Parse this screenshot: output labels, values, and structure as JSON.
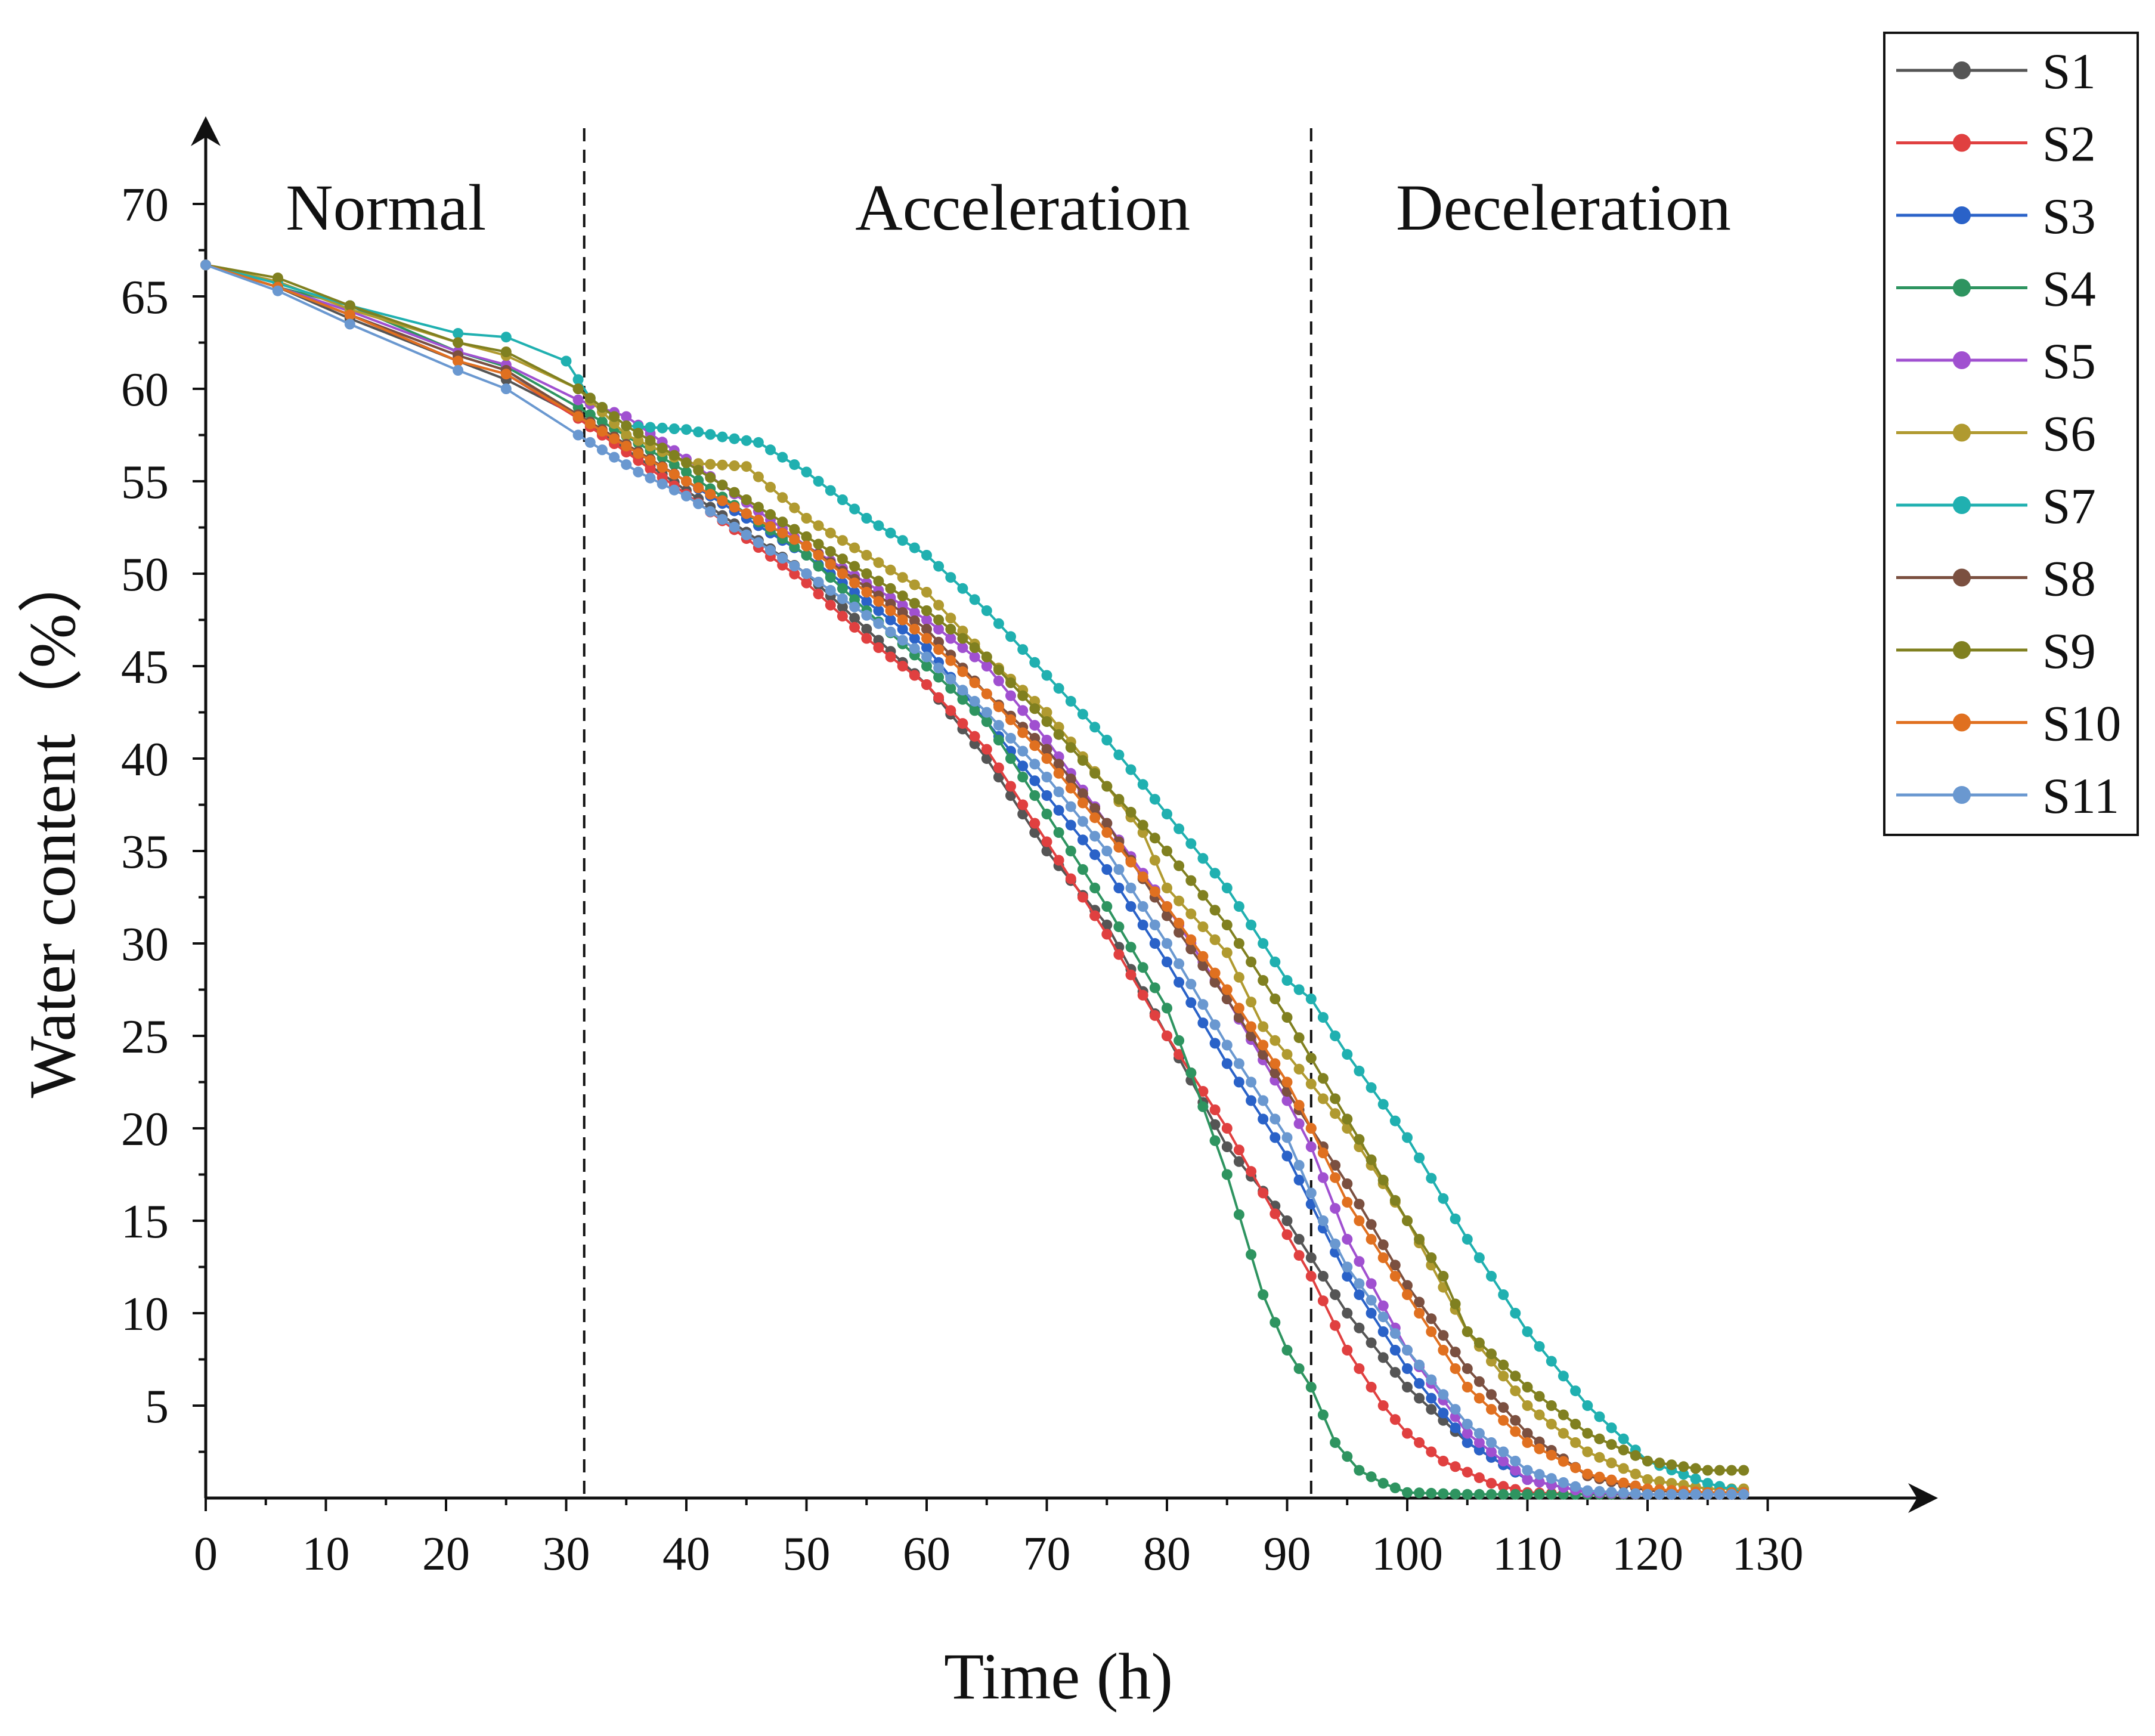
{
  "chart_data": {
    "type": "line",
    "title": "",
    "xlabel": "Time (h)",
    "ylabel": "Water content（%）",
    "xlim": [
      0,
      138
    ],
    "ylim": [
      0,
      70
    ],
    "xticks": [
      0,
      10,
      20,
      30,
      40,
      50,
      60,
      70,
      80,
      90,
      100,
      110,
      120,
      130
    ],
    "yticks": [
      5,
      10,
      15,
      20,
      25,
      30,
      35,
      40,
      45,
      50,
      55,
      60,
      65,
      70
    ],
    "legend_position": "top-right",
    "stage_boundaries": [
      31.5,
      92
    ],
    "stages": [
      {
        "label": "Normal",
        "x": 15
      },
      {
        "label": "Acceleration",
        "x": 68
      },
      {
        "label": "Deceleration",
        "x": 113
      }
    ],
    "series": [
      {
        "name": "S1",
        "color": "#555555",
        "points": [
          [
            0,
            66.7
          ],
          [
            6,
            65.5
          ],
          [
            12,
            63.8
          ],
          [
            21,
            61.5
          ],
          [
            25,
            60.5
          ],
          [
            31,
            58.5
          ],
          [
            40,
            54.5
          ],
          [
            50,
            50
          ],
          [
            60,
            44
          ],
          [
            65,
            40
          ],
          [
            70,
            35
          ],
          [
            75,
            31
          ],
          [
            80,
            25
          ],
          [
            85,
            19
          ],
          [
            90,
            15
          ],
          [
            95,
            10
          ],
          [
            100,
            6
          ],
          [
            105,
            3
          ],
          [
            110,
            1
          ],
          [
            115,
            0.3
          ],
          [
            120,
            0.2
          ],
          [
            128,
            0.2
          ]
        ]
      },
      {
        "name": "S2",
        "color": "#e04040",
        "points": [
          [
            0,
            66.7
          ],
          [
            6,
            65.5
          ],
          [
            12,
            64
          ],
          [
            21,
            61.5
          ],
          [
            25,
            60.8
          ],
          [
            31,
            58.4
          ],
          [
            40,
            54.3
          ],
          [
            50,
            49.5
          ],
          [
            55,
            46.5
          ],
          [
            60,
            44
          ],
          [
            65,
            40.5
          ],
          [
            70,
            35.5
          ],
          [
            75,
            30.5
          ],
          [
            80,
            25
          ],
          [
            82,
            23
          ],
          [
            85,
            20
          ],
          [
            88,
            16.5
          ],
          [
            92,
            12
          ],
          [
            95,
            8
          ],
          [
            98,
            5
          ],
          [
            100,
            3.5
          ],
          [
            103,
            2
          ],
          [
            107,
            0.8
          ],
          [
            110,
            0.3
          ],
          [
            115,
            0.2
          ],
          [
            128,
            0.2
          ]
        ]
      },
      {
        "name": "S3",
        "color": "#2a62c8",
        "points": [
          [
            0,
            66.7
          ],
          [
            6,
            65.5
          ],
          [
            12,
            64
          ],
          [
            21,
            61.8
          ],
          [
            25,
            61
          ],
          [
            31,
            58.5
          ],
          [
            40,
            55
          ],
          [
            50,
            51
          ],
          [
            60,
            46
          ],
          [
            65,
            42
          ],
          [
            70,
            38
          ],
          [
            75,
            34
          ],
          [
            80,
            29
          ],
          [
            85,
            23.5
          ],
          [
            90,
            18.5
          ],
          [
            95,
            12
          ],
          [
            100,
            7
          ],
          [
            105,
            3
          ],
          [
            110,
            1
          ],
          [
            115,
            0.3
          ],
          [
            120,
            0.2
          ],
          [
            128,
            0.2
          ]
        ]
      },
      {
        "name": "S4",
        "color": "#2e9460",
        "points": [
          [
            0,
            66.7
          ],
          [
            6,
            65.5
          ],
          [
            12,
            64.5
          ],
          [
            21,
            62
          ],
          [
            25,
            61.2
          ],
          [
            31,
            59
          ],
          [
            40,
            55.5
          ],
          [
            50,
            51
          ],
          [
            60,
            45
          ],
          [
            65,
            42
          ],
          [
            70,
            37
          ],
          [
            75,
            32
          ],
          [
            80,
            26.5
          ],
          [
            82,
            23
          ],
          [
            85,
            17.5
          ],
          [
            88,
            11
          ],
          [
            90,
            8
          ],
          [
            92,
            6
          ],
          [
            94,
            3
          ],
          [
            96,
            1.5
          ],
          [
            98,
            0.8
          ],
          [
            100,
            0.3
          ],
          [
            105,
            0.2
          ],
          [
            128,
            0.2
          ]
        ]
      },
      {
        "name": "S5",
        "color": "#a050d0",
        "points": [
          [
            0,
            66.7
          ],
          [
            6,
            65.5
          ],
          [
            12,
            64.2
          ],
          [
            21,
            62
          ],
          [
            25,
            61.3
          ],
          [
            31,
            59.4
          ],
          [
            35,
            58.5
          ],
          [
            40,
            56.2
          ],
          [
            50,
            51.5
          ],
          [
            60,
            47.5
          ],
          [
            65,
            45
          ],
          [
            70,
            41
          ],
          [
            75,
            36.5
          ],
          [
            80,
            32
          ],
          [
            85,
            27
          ],
          [
            90,
            21.5
          ],
          [
            92,
            19
          ],
          [
            95,
            14
          ],
          [
            100,
            8
          ],
          [
            105,
            3.5
          ],
          [
            110,
            1
          ],
          [
            115,
            0.3
          ],
          [
            120,
            0.2
          ],
          [
            128,
            0.2
          ]
        ]
      },
      {
        "name": "S6",
        "color": "#b09a30",
        "points": [
          [
            0,
            66.7
          ],
          [
            6,
            65.8
          ],
          [
            12,
            64.3
          ],
          [
            21,
            62.5
          ],
          [
            25,
            61.8
          ],
          [
            31,
            60
          ],
          [
            35,
            57.5
          ],
          [
            40,
            56
          ],
          [
            45,
            55.8
          ],
          [
            50,
            53
          ],
          [
            60,
            49
          ],
          [
            65,
            45.5
          ],
          [
            70,
            42.5
          ],
          [
            75,
            38.5
          ],
          [
            78,
            36
          ],
          [
            80,
            33
          ],
          [
            85,
            29.5
          ],
          [
            88,
            25.5
          ],
          [
            90,
            24
          ],
          [
            95,
            20
          ],
          [
            100,
            15
          ],
          [
            105,
            9
          ],
          [
            110,
            5
          ],
          [
            115,
            2.5
          ],
          [
            120,
            1
          ],
          [
            125,
            0.5
          ],
          [
            128,
            0.5
          ]
        ]
      },
      {
        "name": "S7",
        "color": "#20b0b0",
        "points": [
          [
            0,
            66.7
          ],
          [
            6,
            65.7
          ],
          [
            12,
            64.5
          ],
          [
            21,
            63
          ],
          [
            25,
            62.8
          ],
          [
            30,
            61.5
          ],
          [
            32,
            59.5
          ],
          [
            35,
            58
          ],
          [
            40,
            57.8
          ],
          [
            43,
            57.4
          ],
          [
            46,
            57.1
          ],
          [
            50,
            55.5
          ],
          [
            55,
            53
          ],
          [
            60,
            51
          ],
          [
            65,
            48
          ],
          [
            70,
            44.5
          ],
          [
            75,
            41
          ],
          [
            80,
            37
          ],
          [
            85,
            33
          ],
          [
            90,
            28
          ],
          [
            92,
            27
          ],
          [
            95,
            24
          ],
          [
            100,
            19.5
          ],
          [
            105,
            14
          ],
          [
            110,
            9
          ],
          [
            115,
            5
          ],
          [
            120,
            2
          ],
          [
            125,
            0.8
          ],
          [
            128,
            0.3
          ]
        ]
      },
      {
        "name": "S8",
        "color": "#7b5040",
        "points": [
          [
            0,
            66.7
          ],
          [
            6,
            65.5
          ],
          [
            12,
            64
          ],
          [
            21,
            61.8
          ],
          [
            25,
            61
          ],
          [
            31,
            58.6
          ],
          [
            40,
            55
          ],
          [
            50,
            51.5
          ],
          [
            60,
            47
          ],
          [
            65,
            43.5
          ],
          [
            70,
            40.5
          ],
          [
            75,
            36.5
          ],
          [
            80,
            31.5
          ],
          [
            85,
            27
          ],
          [
            90,
            22
          ],
          [
            95,
            17
          ],
          [
            100,
            11.5
          ],
          [
            105,
            7
          ],
          [
            110,
            3.5
          ],
          [
            115,
            1.2
          ],
          [
            120,
            0.4
          ],
          [
            125,
            0.3
          ],
          [
            128,
            0.3
          ]
        ]
      },
      {
        "name": "S9",
        "color": "#808020",
        "points": [
          [
            0,
            66.7
          ],
          [
            6,
            66
          ],
          [
            12,
            64.5
          ],
          [
            21,
            62.5
          ],
          [
            25,
            62
          ],
          [
            31,
            60
          ],
          [
            35,
            58
          ],
          [
            40,
            56
          ],
          [
            50,
            52
          ],
          [
            60,
            48
          ],
          [
            65,
            45.5
          ],
          [
            70,
            42
          ],
          [
            75,
            38.5
          ],
          [
            80,
            35
          ],
          [
            85,
            31
          ],
          [
            90,
            26
          ],
          [
            95,
            20.5
          ],
          [
            100,
            15
          ],
          [
            103,
            12
          ],
          [
            105,
            9
          ],
          [
            110,
            6
          ],
          [
            115,
            3.5
          ],
          [
            120,
            2
          ],
          [
            125,
            1.5
          ],
          [
            128,
            1.5
          ]
        ]
      },
      {
        "name": "S10",
        "color": "#e07020",
        "points": [
          [
            0,
            66.7
          ],
          [
            6,
            65.5
          ],
          [
            12,
            64
          ],
          [
            21,
            61.5
          ],
          [
            25,
            60.8
          ],
          [
            31,
            58.5
          ],
          [
            36,
            56.5
          ],
          [
            40,
            55
          ],
          [
            50,
            51.5
          ],
          [
            60,
            46.5
          ],
          [
            65,
            43.5
          ],
          [
            70,
            40
          ],
          [
            75,
            36
          ],
          [
            80,
            32
          ],
          [
            85,
            27.5
          ],
          [
            90,
            22.5
          ],
          [
            92,
            20
          ],
          [
            95,
            16
          ],
          [
            100,
            11
          ],
          [
            103,
            8
          ],
          [
            105,
            6
          ],
          [
            110,
            3
          ],
          [
            115,
            1.3
          ],
          [
            120,
            0.5
          ],
          [
            125,
            0.3
          ],
          [
            128,
            0.3
          ]
        ]
      },
      {
        "name": "S11",
        "color": "#6a98d0",
        "points": [
          [
            0,
            66.7
          ],
          [
            6,
            65.3
          ],
          [
            12,
            63.5
          ],
          [
            21,
            61
          ],
          [
            25,
            60
          ],
          [
            31,
            57.5
          ],
          [
            36,
            55.5
          ],
          [
            40,
            54.2
          ],
          [
            50,
            50
          ],
          [
            60,
            45.5
          ],
          [
            65,
            42.5
          ],
          [
            70,
            39
          ],
          [
            75,
            35
          ],
          [
            80,
            30
          ],
          [
            85,
            24.5
          ],
          [
            90,
            19.5
          ],
          [
            93,
            15
          ],
          [
            95,
            12.5
          ],
          [
            100,
            8
          ],
          [
            105,
            4
          ],
          [
            110,
            1.5
          ],
          [
            115,
            0.4
          ],
          [
            120,
            0.2
          ],
          [
            128,
            0.2
          ]
        ]
      }
    ]
  }
}
